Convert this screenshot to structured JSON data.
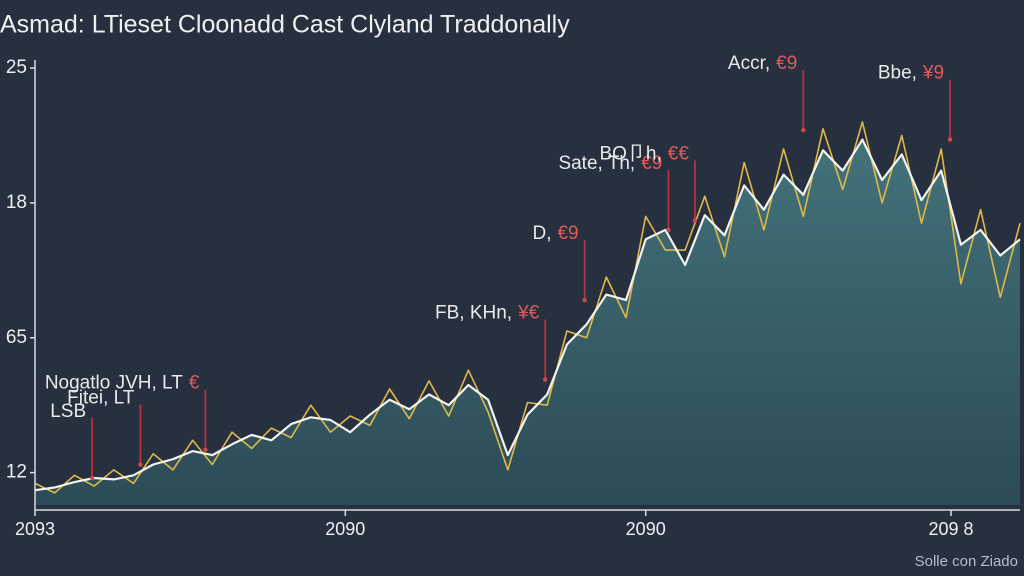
{
  "chart_data": {
    "type": "area",
    "title": "Asmad: LTieset Cloonadd Cast Clyland Traddonally",
    "footer": "Solle con Ziado",
    "x": [
      0,
      2,
      4,
      6,
      8,
      10,
      12,
      14,
      16,
      18,
      20,
      22,
      24,
      26,
      28,
      30,
      32,
      34,
      36,
      38,
      40,
      42,
      44,
      46,
      48,
      50,
      52,
      54,
      56,
      58,
      60,
      62,
      64,
      66,
      68,
      70,
      72,
      74,
      76,
      78,
      80,
      82,
      84,
      86,
      88,
      90,
      92,
      94,
      96,
      98,
      100
    ],
    "series": [
      {
        "color": "#f2f2ee",
        "fill": true,
        "values": [
          -0.13,
          -0.11,
          -0.07,
          -0.04,
          -0.05,
          -0.02,
          0.06,
          0.1,
          0.16,
          0.13,
          0.21,
          0.28,
          0.24,
          0.36,
          0.41,
          0.39,
          0.3,
          0.43,
          0.54,
          0.47,
          0.58,
          0.5,
          0.65,
          0.54,
          0.13,
          0.43,
          0.58,
          0.95,
          1.1,
          1.32,
          1.28,
          1.73,
          1.8,
          1.54,
          1.91,
          1.76,
          2.13,
          1.95,
          2.21,
          2.06,
          2.39,
          2.24,
          2.47,
          2.17,
          2.36,
          2.02,
          2.24,
          1.69,
          1.8,
          1.61,
          1.73
        ]
      },
      {
        "color": "#e0b84a",
        "fill": false,
        "values": [
          -0.08,
          -0.15,
          -0.02,
          -0.1,
          0.02,
          -0.08,
          0.14,
          0.02,
          0.24,
          0.06,
          0.3,
          0.18,
          0.33,
          0.26,
          0.5,
          0.3,
          0.42,
          0.35,
          0.62,
          0.4,
          0.68,
          0.42,
          0.76,
          0.45,
          0.02,
          0.52,
          0.5,
          1.05,
          1.0,
          1.45,
          1.15,
          1.9,
          1.65,
          1.65,
          2.05,
          1.6,
          2.3,
          1.8,
          2.4,
          1.9,
          2.55,
          2.1,
          2.6,
          2.0,
          2.5,
          1.85,
          2.4,
          1.4,
          1.95,
          1.3,
          1.85
        ]
      }
    ],
    "xlim": [
      0,
      100
    ],
    "xticks": [
      {
        "value": 0,
        "label": "2093"
      },
      {
        "value": 31.5,
        "label": "2090"
      },
      {
        "value": 62,
        "label": "2090"
      },
      {
        "value": 93,
        "label": "209 8"
      }
    ],
    "ylim": [
      -0.24,
      3.06
    ],
    "yticks": [
      {
        "value": 3,
        "label": "25"
      },
      {
        "value": 2,
        "label": "18"
      },
      {
        "value": 1,
        "label": "65"
      },
      {
        "value": 0,
        "label": "12"
      }
    ],
    "annotations": [
      {
        "text": "LSB",
        "tag": "",
        "x": 5.8,
        "y": -0.04
      },
      {
        "text": "Fitei, LT",
        "tag": "",
        "x": 10.7,
        "y": 0.06
      },
      {
        "text": "Nogatlo JVH, LT",
        "tag": "€",
        "x": 17.3,
        "y": 0.17
      },
      {
        "text": "FB, KHn,",
        "tag": "¥€",
        "x": 51.8,
        "y": 0.69
      },
      {
        "text": "D,",
        "tag": "€9",
        "x": 55.8,
        "y": 1.28
      },
      {
        "text": "Sate, Th,",
        "tag": "€9",
        "x": 64.3,
        "y": 1.8
      },
      {
        "text": "BO卩h,",
        "tag": "€€",
        "x": 67,
        "y": 1.87
      },
      {
        "text": "Accr,",
        "tag": "€9",
        "x": 78,
        "y": 2.54
      },
      {
        "text": "Bbe,",
        "tag": "¥9",
        "x": 92.9,
        "y": 2.47
      }
    ]
  }
}
